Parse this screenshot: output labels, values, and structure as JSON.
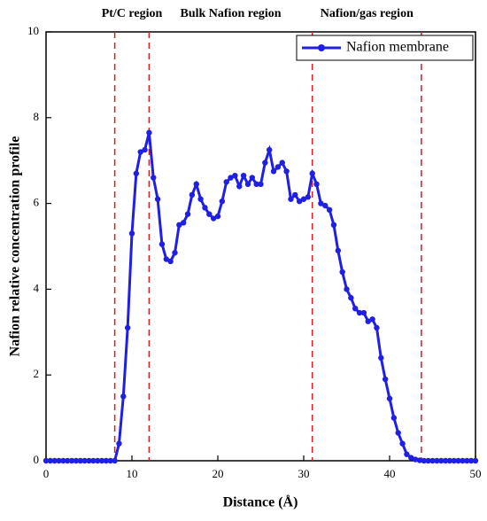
{
  "chart_data": {
    "type": "line",
    "xlabel": "Distance (Å)",
    "ylabel": "Nafion relative concentration profile",
    "annotations": [
      "Pt/C region",
      "Bulk Nafion region",
      "Nafion/gas region"
    ],
    "vlines": [
      8,
      12,
      31,
      43.7
    ],
    "vline_color": "#d42020",
    "xlim": [
      0,
      50
    ],
    "xticks": [
      0,
      10,
      20,
      30,
      40,
      50
    ],
    "ylim": [
      0,
      10
    ],
    "yticks": [
      0,
      2,
      4,
      6,
      8,
      10
    ],
    "legend": "upper right",
    "x": [
      0,
      0.5,
      1,
      1.5,
      2,
      2.5,
      3,
      3.5,
      4,
      4.5,
      5,
      5.5,
      6,
      6.5,
      7,
      7.5,
      8,
      8.5,
      9,
      9.5,
      10,
      10.5,
      11,
      11.5,
      12,
      12.5,
      13,
      13.5,
      14,
      14.5,
      15,
      15.5,
      16,
      16.5,
      17,
      17.5,
      18,
      18.5,
      19,
      19.5,
      20,
      20.5,
      21,
      21.5,
      22,
      22.5,
      23,
      23.5,
      24,
      24.5,
      25,
      25.5,
      26,
      26.5,
      27,
      27.5,
      28,
      28.5,
      29,
      29.5,
      30,
      30.5,
      31,
      31.5,
      32,
      32.5,
      33,
      33.5,
      34,
      34.5,
      35,
      35.5,
      36,
      36.5,
      37,
      37.5,
      38,
      38.5,
      39,
      39.5,
      40,
      40.5,
      41,
      41.5,
      42,
      42.5,
      43,
      43.5,
      44,
      44.5,
      45,
      45.5,
      46,
      46.5,
      47,
      47.5,
      48,
      48.5,
      49,
      49.5,
      50
    ],
    "series": [
      {
        "name": "Nafion membrane",
        "color": "#1f1fe6",
        "values": [
          0,
          0,
          0,
          0,
          0,
          0,
          0,
          0,
          0,
          0,
          0,
          0,
          0,
          0,
          0,
          0,
          0,
          0.4,
          1.5,
          3.1,
          5.3,
          6.7,
          7.2,
          7.25,
          7.65,
          6.6,
          6.1,
          5.05,
          4.7,
          4.65,
          4.85,
          5.5,
          5.55,
          5.75,
          6.2,
          6.45,
          6.1,
          5.9,
          5.75,
          5.65,
          5.7,
          6.05,
          6.5,
          6.6,
          6.65,
          6.4,
          6.65,
          6.45,
          6.6,
          6.45,
          6.45,
          6.95,
          7.25,
          6.75,
          6.85,
          6.95,
          6.75,
          6.1,
          6.2,
          6.05,
          6.1,
          6.15,
          6.7,
          6.45,
          6.0,
          5.95,
          5.85,
          5.5,
          4.9,
          4.4,
          4.0,
          3.8,
          3.55,
          3.45,
          3.45,
          3.25,
          3.3,
          3.1,
          2.4,
          1.9,
          1.45,
          1.0,
          0.65,
          0.4,
          0.15,
          0.07,
          0.03,
          0.01,
          0,
          0,
          0,
          0,
          0,
          0,
          0,
          0,
          0,
          0,
          0,
          0,
          0
        ]
      }
    ]
  }
}
